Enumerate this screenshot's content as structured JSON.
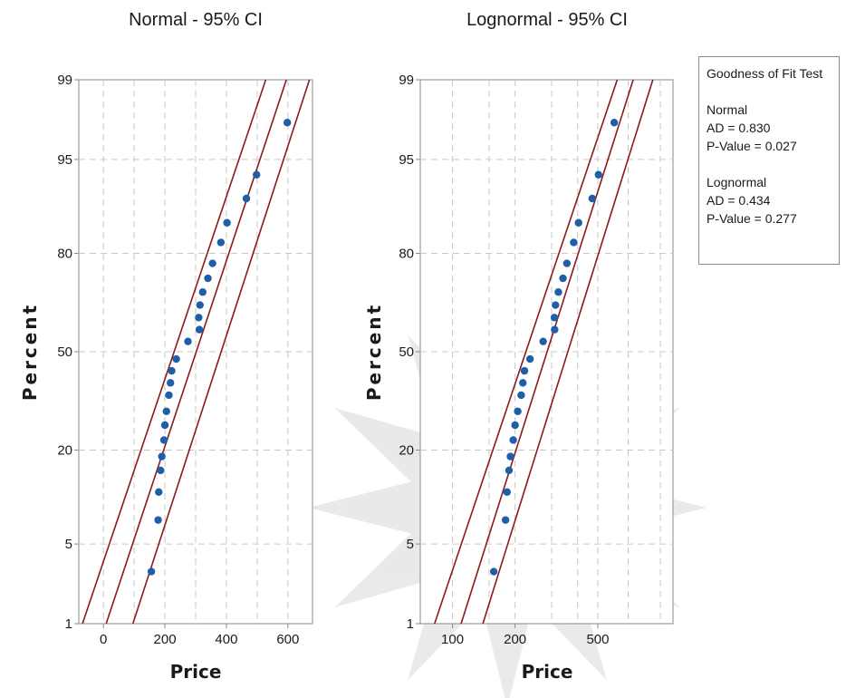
{
  "chart_data": [
    {
      "type": "scatter",
      "title": "Normal - 95% CI",
      "xlabel": "Price",
      "ylabel": "Percent",
      "x_ticks": [
        "0",
        "200",
        "400",
        "600"
      ],
      "y_ticks": [
        "1",
        "5",
        "20",
        "50",
        "80",
        "95",
        "99"
      ],
      "xlim": [
        -80,
        680
      ],
      "scale": "normal probability",
      "points": [
        {
          "x": 156,
          "y": 3.0
        },
        {
          "x": 178,
          "y": 7.5
        },
        {
          "x": 180,
          "y": 11.5
        },
        {
          "x": 186,
          "y": 15.5
        },
        {
          "x": 190,
          "y": 18.5
        },
        {
          "x": 197,
          "y": 22.5
        },
        {
          "x": 200,
          "y": 26.5
        },
        {
          "x": 205,
          "y": 30.5
        },
        {
          "x": 213,
          "y": 35.5
        },
        {
          "x": 218,
          "y": 39.5
        },
        {
          "x": 222,
          "y": 43.5
        },
        {
          "x": 237,
          "y": 47.5
        },
        {
          "x": 275,
          "y": 53.5
        },
        {
          "x": 312,
          "y": 57.5
        },
        {
          "x": 310,
          "y": 61.5
        },
        {
          "x": 314,
          "y": 65.5
        },
        {
          "x": 323,
          "y": 69.5
        },
        {
          "x": 340,
          "y": 73.5
        },
        {
          "x": 355,
          "y": 77.5
        },
        {
          "x": 382,
          "y": 82.5
        },
        {
          "x": 402,
          "y": 86.5
        },
        {
          "x": 465,
          "y": 90.5
        },
        {
          "x": 498,
          "y": 93.5
        },
        {
          "x": 598,
          "y": 97.5
        }
      ],
      "fit_lines": [
        {
          "name": "lower",
          "p1": [
            -68,
            1
          ],
          "p2": [
            528,
            99
          ]
        },
        {
          "name": "fit",
          "p1": [
            9,
            1
          ],
          "p2": [
            595,
            99
          ]
        },
        {
          "name": "upper",
          "p1": [
            96,
            1
          ],
          "p2": [
            670,
            99
          ]
        }
      ]
    },
    {
      "type": "scatter",
      "title": "Lognormal - 95% CI",
      "xlabel": "Price",
      "ylabel": "Percent",
      "x_ticks": [
        "100",
        "200",
        "500"
      ],
      "y_ticks": [
        "1",
        "5",
        "20",
        "50",
        "80",
        "95",
        "99"
      ],
      "xlim": [
        70,
        1150
      ],
      "scale": "lognormal probability",
      "points": [
        {
          "x": 158,
          "y": 3.0
        },
        {
          "x": 180,
          "y": 7.5
        },
        {
          "x": 183,
          "y": 11.5
        },
        {
          "x": 187,
          "y": 15.5
        },
        {
          "x": 190,
          "y": 18.5
        },
        {
          "x": 196,
          "y": 22.5
        },
        {
          "x": 200,
          "y": 26.5
        },
        {
          "x": 206,
          "y": 30.5
        },
        {
          "x": 214,
          "y": 35.5
        },
        {
          "x": 218,
          "y": 39.5
        },
        {
          "x": 222,
          "y": 43.5
        },
        {
          "x": 236,
          "y": 47.5
        },
        {
          "x": 273,
          "y": 53.5
        },
        {
          "x": 310,
          "y": 57.5
        },
        {
          "x": 309,
          "y": 61.5
        },
        {
          "x": 313,
          "y": 65.5
        },
        {
          "x": 323,
          "y": 69.5
        },
        {
          "x": 340,
          "y": 73.5
        },
        {
          "x": 355,
          "y": 77.5
        },
        {
          "x": 383,
          "y": 82.5
        },
        {
          "x": 404,
          "y": 86.5
        },
        {
          "x": 470,
          "y": 90.5
        },
        {
          "x": 504,
          "y": 93.5
        },
        {
          "x": 600,
          "y": 97.5
        }
      ],
      "fit_lines": [
        {
          "name": "lower",
          "p1": [
            82,
            1
          ],
          "p2": [
            620,
            99
          ]
        },
        {
          "name": "fit",
          "p1": [
            110,
            1
          ],
          "p2": [
            740,
            99
          ]
        },
        {
          "name": "upper",
          "p1": [
            140,
            1
          ],
          "p2": [
            920,
            99
          ]
        }
      ]
    }
  ],
  "legend": {
    "title": "Goodness of Fit Test",
    "normal_label": "Normal",
    "normal_ad": "AD = 0.830",
    "normal_p": "P-Value = 0.027",
    "lognormal_label": "Lognormal",
    "lognormal_ad": "AD = 0.434",
    "lognormal_p": "P-Value = 0.277"
  },
  "colors": {
    "points": "#1f5fa8",
    "fit_lines": "#8b1a1a",
    "grid": "#c8c8c8"
  }
}
